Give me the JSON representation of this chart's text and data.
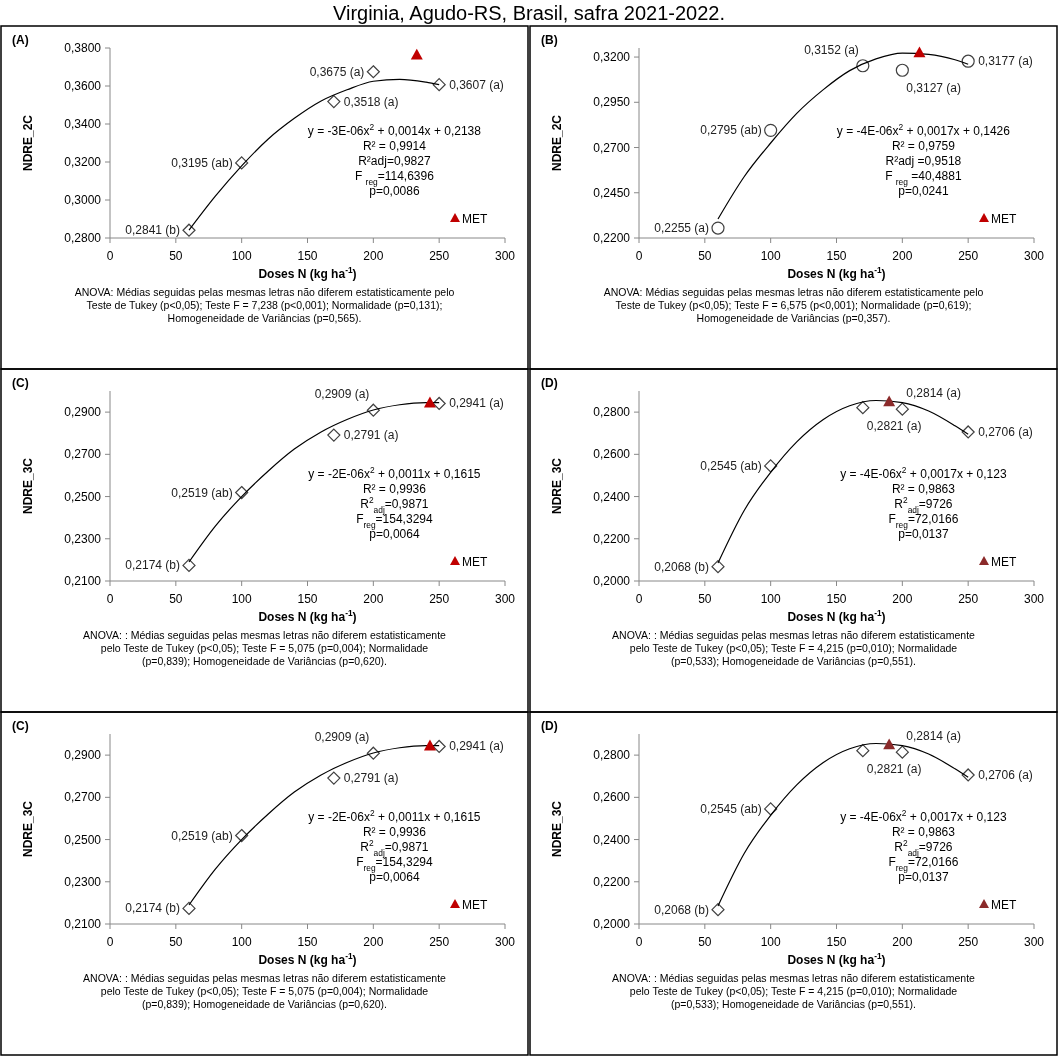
{
  "chart_data": [
    {
      "type": "scatter",
      "title": "(A)",
      "subtitle": "Virginia, Agudo-RS, Brasil, safra 2021-2022.",
      "xlabel": "Doses N (kg ha$^{-1}$)",
      "ylabel": "NDRE_2C",
      "x": [
        60,
        100,
        170,
        200,
        250
      ],
      "xlim": [
        0,
        300
      ],
      "xticks": [
        0,
        50,
        100,
        150,
        200,
        250,
        300
      ],
      "ylim": [
        0.28,
        0.38
      ],
      "yticks": [
        {
          "value": 0.28,
          "label": "0,2800"
        },
        {
          "value": 0.3,
          "label": "0,3000"
        },
        {
          "value": 0.32,
          "label": "0,3200"
        },
        {
          "value": 0.34,
          "label": "0,3400"
        },
        {
          "value": 0.36,
          "label": "0,3600"
        },
        {
          "value": 0.38,
          "label": "0,3800"
        }
      ],
      "legend": "bottom right",
      "series": [
        {
          "type": "scatter",
          "marker": "diamond",
          "color": "#404040",
          "values": [
            0.2841,
            0.3195,
            0.3518,
            0.3675,
            0.3607
          ],
          "value_labels": [
            "0,2841 (b)",
            "0,3195 (ab)",
            "0,3518 (a)",
            "0,3675 (a)",
            "0,3607 (a)"
          ]
        },
        {
          "type": "line",
          "marker": "none",
          "color": "#000000",
          "x": [
            60,
            80,
            100,
            120,
            140,
            160,
            180,
            200,
            220,
            240,
            250
          ],
          "values": [
            0.2841,
            0.302,
            0.318,
            0.332,
            0.343,
            0.352,
            0.358,
            0.3625,
            0.3635,
            0.362,
            0.3607
          ]
        },
        {
          "type": "scatter",
          "marker": "triangle",
          "name": "MET",
          "color": "#c00000",
          "x": [
            233
          ],
          "values": [
            0.3765
          ]
        }
      ],
      "annotations": [
        "y = -3E-06x$^{2}$ + 0,0014x + 0,2138",
        "R² = 0,9914",
        "R²adj=0,9827",
        "F $_{reg}$=114,6396",
        "p=0,0086",
        "ANOVA: Médias seguidas pelas mesmas letras não diferem estatisticamente pelo Teste de Tukey (p<0,05);  Teste F = 7,238 (p<0,001); Normalidade (p=0,131); Homogeneidade de Variâncias (p=0,565)."
      ]
    },
    {
      "type": "scatter",
      "title": "(B)",
      "xlabel": "Doses N (kg ha$^{-1}$)",
      "ylabel": "NDRE_2C",
      "x": [
        60,
        100,
        170,
        200,
        250
      ],
      "xlim": [
        0,
        300
      ],
      "xticks": [
        0,
        50,
        100,
        150,
        200,
        250,
        300
      ],
      "ylim": [
        0.22,
        0.325
      ],
      "yticks": [
        {
          "value": 0.22,
          "label": "0,2200"
        },
        {
          "value": 0.245,
          "label": "0,2450"
        },
        {
          "value": 0.27,
          "label": "0,2700"
        },
        {
          "value": 0.295,
          "label": "0,2950"
        },
        {
          "value": 0.32,
          "label": "0,3200"
        }
      ],
      "legend": "bottom right",
      "series": [
        {
          "type": "scatter",
          "marker": "circle",
          "color": "#404040",
          "values": [
            0.2255,
            0.2795,
            0.3152,
            0.3127,
            0.3177
          ],
          "value_labels": [
            "0,2255 (a)",
            "0,2795 (ab)",
            "0,3152 (a)",
            "0,3127 (a)",
            "0,3177 (a)"
          ]
        },
        {
          "type": "line",
          "marker": "none",
          "color": "#000000",
          "x": [
            60,
            80,
            100,
            120,
            140,
            160,
            180,
            200,
            220,
            240,
            250
          ],
          "values": [
            0.2305,
            0.254,
            0.2725,
            0.289,
            0.302,
            0.3125,
            0.319,
            0.3222,
            0.3215,
            0.3185,
            0.316
          ]
        },
        {
          "type": "scatter",
          "marker": "triangle",
          "name": "MET",
          "color": "#c00000",
          "x": [
            213
          ],
          "values": [
            0.3225
          ]
        }
      ],
      "annotations": [
        "y = -4E-06x$^{2}$ + 0,0017x + 0,1426",
        "R² = 0,9759",
        "R²adj =0,9518",
        "F $_{reg}$ =40,4881",
        "p=0,0241",
        "ANOVA: Médias seguidas pelas mesmas letras não diferem estatisticamente pelo Teste de Tukey (p<0,05);  Teste F = 6,575 (p<0,001); Normalidade (p=0,619); Homogeneidade de Variâncias (p=0,357)."
      ]
    },
    {
      "type": "scatter",
      "title": "(C)",
      "xlabel": "Doses N (kg ha$^{-1}$)",
      "ylabel": "NDRE_3C",
      "x": [
        60,
        100,
        170,
        200,
        250
      ],
      "xlim": [
        0,
        300
      ],
      "xticks": [
        0,
        50,
        100,
        150,
        200,
        250,
        300
      ],
      "ylim": [
        0.21,
        0.3
      ],
      "yticks": [
        {
          "value": 0.21,
          "label": "0,2100"
        },
        {
          "value": 0.23,
          "label": "0,2300"
        },
        {
          "value": 0.25,
          "label": "0,2500"
        },
        {
          "value": 0.27,
          "label": "0,2700"
        },
        {
          "value": 0.29,
          "label": "0,2900"
        }
      ],
      "legend": "bottom right",
      "series": [
        {
          "type": "scatter",
          "marker": "diamond",
          "color": "#404040",
          "values": [
            0.2174,
            0.2519,
            0.2791,
            0.2909,
            0.2941
          ],
          "value_labels": [
            "0,2174 (b)",
            "0,2519 (ab)",
            "0,2791 (a)",
            "0,2909 (a)",
            "0,2941 (a)"
          ]
        },
        {
          "type": "line",
          "marker": "none",
          "color": "#000000",
          "x": [
            60,
            80,
            100,
            120,
            140,
            160,
            180,
            200,
            220,
            240,
            250
          ],
          "values": [
            0.219,
            0.236,
            0.25,
            0.262,
            0.2725,
            0.2805,
            0.2865,
            0.291,
            0.2935,
            0.2945,
            0.2945
          ]
        },
        {
          "type": "scatter",
          "marker": "triangle",
          "name": "MET",
          "color": "#c00000",
          "x": [
            243
          ],
          "values": [
            0.2945
          ]
        }
      ],
      "annotations": [
        "y = -2E-06x$^{2}$ + 0,0011x + 0,1615",
        "R² = 0,9936",
        "R$^{2}$$_{adj}$=0,9871",
        "F$_{reg}$=154,3294",
        "p=0,0064",
        "ANOVA: : Médias seguidas pelas mesmas letras não diferem estatisticamente pelo Teste de Tukey (p<0,05); Teste F = 5,075 (p=0,004); Normalidade (p=0,839);  Homogeneidade de Variâncias (p=0,620)."
      ]
    },
    {
      "type": "scatter",
      "title": "(D)",
      "xlabel": "Doses N (kg ha$^{-1}$)",
      "ylabel": "NDRE_3C",
      "x": [
        60,
        100,
        170,
        200,
        250
      ],
      "xlim": [
        0,
        300
      ],
      "xticks": [
        0,
        50,
        100,
        150,
        200,
        250,
        300
      ],
      "ylim": [
        0.2,
        0.29
      ],
      "yticks": [
        {
          "value": 0.2,
          "label": "0,2000"
        },
        {
          "value": 0.22,
          "label": "0,2200"
        },
        {
          "value": 0.24,
          "label": "0,2400"
        },
        {
          "value": 0.26,
          "label": "0,2600"
        },
        {
          "value": 0.28,
          "label": "0,2800"
        }
      ],
      "legend": "bottom right",
      "series": [
        {
          "type": "scatter",
          "marker": "diamond",
          "color": "#404040",
          "values": [
            0.2068,
            0.2545,
            0.2821,
            0.2814,
            0.2706
          ],
          "value_labels": [
            "0,2068 (b)",
            "0,2545 (ab)",
            "0,2821 (a)",
            "0,2814 (a)",
            "0,2706 (a)"
          ]
        },
        {
          "type": "line",
          "marker": "none",
          "color": "#000000",
          "x": [
            60,
            80,
            100,
            120,
            140,
            160,
            180,
            200,
            220,
            240,
            250
          ],
          "values": [
            0.2085,
            0.2335,
            0.2515,
            0.266,
            0.2765,
            0.283,
            0.2855,
            0.2845,
            0.2805,
            0.2735,
            0.2695
          ]
        },
        {
          "type": "scatter",
          "marker": "triangle",
          "name": "MET",
          "color": "#8b2a2a",
          "x": [
            190
          ],
          "values": [
            0.285
          ]
        }
      ],
      "annotations": [
        "y = -4E-06x$^{2}$ + 0,0017x + 0,123",
        "R² = 0,9863",
        "R$^{2}$$_{adj}$=9726",
        "F$_{reg}$=72,0166",
        "p=0,0137",
        "ANOVA: : Médias seguidas pelas mesmas letras não diferem estatisticamente pelo Teste de Tukey (p<0,05); Teste F = 4,215 (p=0,010); Normalidade (p=0,533); Homogeneidade de Variâncias (p=0,551)."
      ]
    },
    {
      "type": "scatter",
      "title": "(C)",
      "xlabel": "Doses N (kg ha$^{-1}$)",
      "ylabel": "NDRE_3C",
      "x": [
        60,
        100,
        170,
        200,
        250
      ],
      "xlim": [
        0,
        300
      ],
      "xticks": [
        0,
        50,
        100,
        150,
        200,
        250,
        300
      ],
      "ylim": [
        0.21,
        0.3
      ],
      "yticks": [
        {
          "value": 0.21,
          "label": "0,2100"
        },
        {
          "value": 0.23,
          "label": "0,2300"
        },
        {
          "value": 0.25,
          "label": "0,2500"
        },
        {
          "value": 0.27,
          "label": "0,2700"
        },
        {
          "value": 0.29,
          "label": "0,2900"
        }
      ],
      "legend": "bottom right",
      "series": [
        {
          "type": "scatter",
          "marker": "diamond",
          "color": "#404040",
          "values": [
            0.2174,
            0.2519,
            0.2791,
            0.2909,
            0.2941
          ],
          "value_labels": [
            "0,2174 (b)",
            "0,2519 (ab)",
            "0,2791 (a)",
            "0,2909 (a)",
            "0,2941 (a)"
          ]
        },
        {
          "type": "line",
          "marker": "none",
          "color": "#000000",
          "x": [
            60,
            80,
            100,
            120,
            140,
            160,
            180,
            200,
            220,
            240,
            250
          ],
          "values": [
            0.219,
            0.236,
            0.25,
            0.262,
            0.2725,
            0.2805,
            0.2865,
            0.291,
            0.2935,
            0.2945,
            0.2945
          ]
        },
        {
          "type": "scatter",
          "marker": "triangle",
          "name": "MET",
          "color": "#c00000",
          "x": [
            243
          ],
          "values": [
            0.2945
          ]
        }
      ],
      "annotations": [
        "y = -2E-06x$^{2}$ + 0,0011x + 0,1615",
        "R² = 0,9936",
        "R$^{2}$$_{adj}$=0,9871",
        "F$_{reg}$=154,3294",
        "p=0,0064",
        "ANOVA: : Médias seguidas pelas mesmas letras não diferem estatisticamente pelo Teste de Tukey (p<0,05); Teste F = 5,075 (p=0,004); Normalidade (p=0,839);  Homogeneidade de Variâncias (p=0,620)."
      ]
    },
    {
      "type": "scatter",
      "title": "(D)",
      "xlabel": "Doses N (kg ha$^{-1}$)",
      "ylabel": "NDRE_3C",
      "x": [
        60,
        100,
        170,
        200,
        250
      ],
      "xlim": [
        0,
        300
      ],
      "xticks": [
        0,
        50,
        100,
        150,
        200,
        250,
        300
      ],
      "ylim": [
        0.2,
        0.29
      ],
      "yticks": [
        {
          "value": 0.2,
          "label": "0,2000"
        },
        {
          "value": 0.22,
          "label": "0,2200"
        },
        {
          "value": 0.24,
          "label": "0,2400"
        },
        {
          "value": 0.26,
          "label": "0,2600"
        },
        {
          "value": 0.28,
          "label": "0,2800"
        }
      ],
      "legend": "bottom right",
      "series": [
        {
          "type": "scatter",
          "marker": "diamond",
          "color": "#404040",
          "values": [
            0.2068,
            0.2545,
            0.2821,
            0.2814,
            0.2706
          ],
          "value_labels": [
            "0,2068 (b)",
            "0,2545 (ab)",
            "0,2821 (a)",
            "0,2814 (a)",
            "0,2706 (a)"
          ]
        },
        {
          "type": "line",
          "marker": "none",
          "color": "#000000",
          "x": [
            60,
            80,
            100,
            120,
            140,
            160,
            180,
            200,
            220,
            240,
            250
          ],
          "values": [
            0.2085,
            0.2335,
            0.2515,
            0.266,
            0.2765,
            0.283,
            0.2855,
            0.2845,
            0.2805,
            0.2735,
            0.2695
          ]
        },
        {
          "type": "scatter",
          "marker": "triangle",
          "name": "MET",
          "color": "#8b2a2a",
          "x": [
            190
          ],
          "values": [
            0.285
          ]
        }
      ],
      "annotations": [
        "y = -4E-06x$^{2}$ + 0,0017x + 0,123",
        "R² = 0,9863",
        "R$^{2}$$_{adj}$=9726",
        "F$_{reg}$=72,0166",
        "p=0,0137",
        "ANOVA: : Médias seguidas pelas mesmas letras não diferem estatisticamente pelo Teste de Tukey (p<0,05); Teste F = 4,215 (p=0,010); Normalidade (p=0,533); Homogeneidade de Variâncias (p=0,551)."
      ]
    }
  ]
}
